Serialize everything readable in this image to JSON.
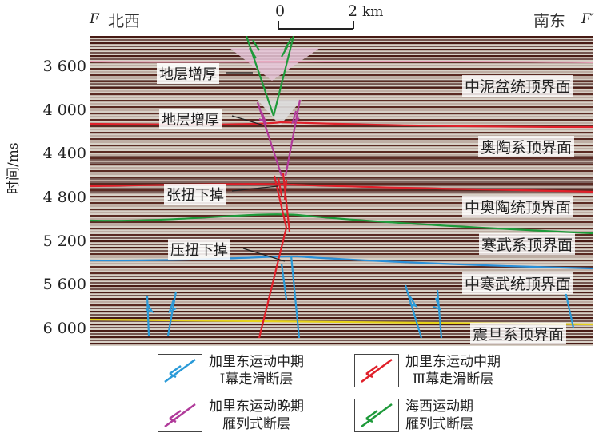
{
  "header": {
    "left_letter": "F",
    "left_dir": "北西",
    "right_dir": "南东",
    "right_letter": "F′"
  },
  "scale_bar": {
    "zero": "0",
    "distance": "2",
    "unit": "km"
  },
  "y_axis": {
    "title": "时间/ms",
    "ticks": [
      "3 600",
      "4 000",
      "4 400",
      "4 800",
      "5 200",
      "5 600",
      "6 000"
    ]
  },
  "boundaries": [
    {
      "label": "中泥盆统顶界面",
      "color": "#e8a0b8"
    },
    {
      "label": "奥陶系顶界面",
      "color": "#e0202a"
    },
    {
      "label": "中奥陶统顶界面",
      "color": "#e0202a"
    },
    {
      "label": "寒武系顶界面",
      "color": "#1e9a3a"
    },
    {
      "label": "中寒武统顶界面",
      "color": "#2a8fd8"
    },
    {
      "label": "震旦系顶界面",
      "color": "#e6d21a"
    }
  ],
  "annotations": [
    "地层增厚",
    "地层增厚",
    "张扭下掉",
    "压扭下掉"
  ],
  "legend": [
    {
      "line1": "加里东运动中期",
      "line2": "Ⅰ幕走滑断层",
      "color": "#2a9ad8",
      "icon": "blue-fault-icon"
    },
    {
      "line1": "加里东运动中期",
      "line2": "Ⅲ幕走滑断层",
      "color": "#e0202a",
      "icon": "red-fault-icon"
    },
    {
      "line1": "加里东运动晚期",
      "line2": "雁列式断层",
      "color": "#b03a9a",
      "icon": "purple-fault-icon"
    },
    {
      "line1": "海西运动期",
      "line2": "雁列式断层",
      "color": "#1e9a3a",
      "icon": "green-fault-icon"
    }
  ]
}
